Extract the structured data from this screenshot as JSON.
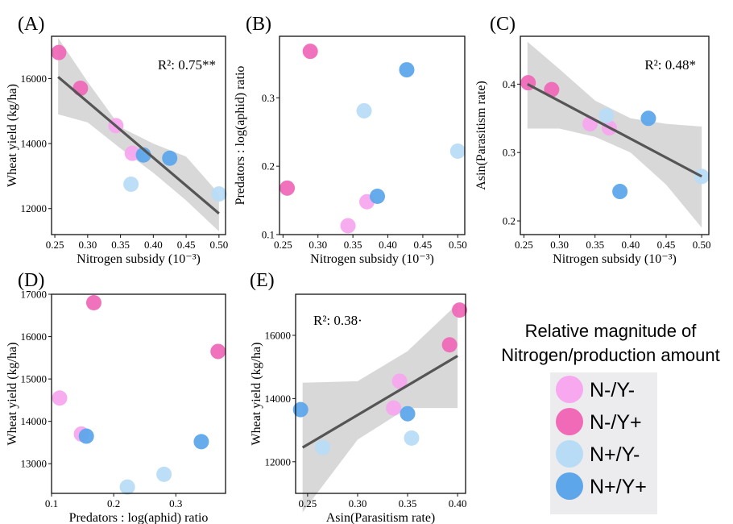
{
  "colors": {
    "N-/Y-": "#f7a8ef",
    "N-/Y+": "#f06ab8",
    "N+/Y-": "#b8dcf5",
    "N+/Y+": "#5ea6ea",
    "fit_line": "#555555",
    "ci_band": "#d8d8d8"
  },
  "chart_data": [
    {
      "panel": "(A)",
      "type": "scatter",
      "xlabel": "Nitrogen subsidy (10⁻³)",
      "ylabel": "Wheat yield (kg/ha)",
      "annotation": "R²: 0.75**",
      "xlim": [
        0.245,
        0.51
      ],
      "ylim": [
        11200,
        17300
      ],
      "xticks": [
        0.25,
        0.3,
        0.35,
        0.4,
        0.45,
        0.5
      ],
      "xtick_labels": [
        "0.25",
        "0.30",
        "0.35",
        "0.40",
        "0.45",
        "0.50"
      ],
      "yticks": [
        12000,
        14000,
        16000
      ],
      "ytick_labels": [
        "12000",
        "14000",
        "16000"
      ],
      "fit": {
        "x": [
          0.255,
          0.5
        ],
        "y": [
          16050,
          11850
        ]
      },
      "ci": {
        "x": [
          0.255,
          0.3,
          0.35,
          0.4,
          0.45,
          0.5
        ],
        "lower": [
          14900,
          14650,
          13850,
          13100,
          12250,
          11300
        ],
        "upper": [
          17250,
          15900,
          14500,
          14000,
          13600,
          12450
        ]
      },
      "points": [
        {
          "x": 0.256,
          "y": 16800,
          "group": "N-/Y+"
        },
        {
          "x": 0.289,
          "y": 15700,
          "group": "N-/Y+"
        },
        {
          "x": 0.343,
          "y": 14550,
          "group": "N-/Y-"
        },
        {
          "x": 0.368,
          "y": 13700,
          "group": "N-/Y-"
        },
        {
          "x": 0.366,
          "y": 12750,
          "group": "N+/Y-"
        },
        {
          "x": 0.385,
          "y": 13650,
          "group": "N+/Y+"
        },
        {
          "x": 0.425,
          "y": 13550,
          "group": "N+/Y+"
        },
        {
          "x": 0.5,
          "y": 12450,
          "group": "N+/Y-"
        }
      ]
    },
    {
      "panel": "(B)",
      "type": "scatter",
      "xlabel": "Nitrogen subsidy (10⁻³)",
      "ylabel": "Predators : log(aphid) ratio",
      "annotation": "",
      "xlim": [
        0.245,
        0.51
      ],
      "ylim": [
        0.1,
        0.39
      ],
      "xticks": [
        0.25,
        0.3,
        0.35,
        0.4,
        0.45,
        0.5
      ],
      "xtick_labels": [
        "0.25",
        "0.30",
        "0.35",
        "0.40",
        "0.45",
        "0.50"
      ],
      "yticks": [
        0.1,
        0.2,
        0.3
      ],
      "ytick_labels": [
        "0.1",
        "0.2",
        "0.3"
      ],
      "points": [
        {
          "x": 0.256,
          "y": 0.168,
          "group": "N-/Y+"
        },
        {
          "x": 0.289,
          "y": 0.368,
          "group": "N-/Y+"
        },
        {
          "x": 0.343,
          "y": 0.113,
          "group": "N-/Y-"
        },
        {
          "x": 0.37,
          "y": 0.148,
          "group": "N-/Y-"
        },
        {
          "x": 0.366,
          "y": 0.281,
          "group": "N+/Y-"
        },
        {
          "x": 0.385,
          "y": 0.156,
          "group": "N+/Y+"
        },
        {
          "x": 0.427,
          "y": 0.341,
          "group": "N+/Y+"
        },
        {
          "x": 0.5,
          "y": 0.222,
          "group": "N+/Y-"
        }
      ]
    },
    {
      "panel": "(C)",
      "type": "scatter",
      "xlabel": "Nitrogen subsidy (10⁻³)",
      "ylabel": "Asin(Parasitism rate)",
      "annotation": "R²: 0.48*",
      "xlim": [
        0.245,
        0.51
      ],
      "ylim": [
        0.18,
        0.47
      ],
      "xticks": [
        0.25,
        0.3,
        0.35,
        0.4,
        0.45,
        0.5
      ],
      "xtick_labels": [
        "0.25",
        "0.30",
        "0.35",
        "0.40",
        "0.45",
        "0.50"
      ],
      "yticks": [
        0.2,
        0.3,
        0.4
      ],
      "ytick_labels": [
        "0.2",
        "0.3",
        "0.4"
      ],
      "fit": {
        "x": [
          0.255,
          0.5
        ],
        "y": [
          0.4,
          0.265
        ]
      },
      "ci": {
        "x": [
          0.255,
          0.3,
          0.35,
          0.4,
          0.45,
          0.5
        ],
        "lower": [
          0.335,
          0.335,
          0.323,
          0.3,
          0.253,
          0.19
        ],
        "upper": [
          0.462,
          0.422,
          0.376,
          0.35,
          0.342,
          0.338
        ]
      },
      "points": [
        {
          "x": 0.256,
          "y": 0.402,
          "group": "N-/Y+"
        },
        {
          "x": 0.289,
          "y": 0.392,
          "group": "N-/Y+"
        },
        {
          "x": 0.343,
          "y": 0.342,
          "group": "N-/Y-"
        },
        {
          "x": 0.37,
          "y": 0.336,
          "group": "N-/Y-"
        },
        {
          "x": 0.366,
          "y": 0.354,
          "group": "N+/Y-"
        },
        {
          "x": 0.385,
          "y": 0.243,
          "group": "N+/Y+"
        },
        {
          "x": 0.425,
          "y": 0.35,
          "group": "N+/Y+"
        },
        {
          "x": 0.5,
          "y": 0.265,
          "group": "N+/Y-"
        }
      ]
    },
    {
      "panel": "(D)",
      "type": "scatter",
      "xlabel": "Predators : log(aphid) ratio",
      "ylabel": "Wheat yield (kg/ha)",
      "annotation": "",
      "xlim": [
        0.1,
        0.38
      ],
      "ylim": [
        12300,
        17000
      ],
      "xticks": [
        0.1,
        0.2,
        0.3
      ],
      "xtick_labels": [
        "0.1",
        "0.2",
        "0.3"
      ],
      "yticks": [
        13000,
        14000,
        15000,
        16000,
        17000
      ],
      "ytick_labels": [
        "13000",
        "14000",
        "15000",
        "16000",
        "17000"
      ],
      "points": [
        {
          "x": 0.113,
          "y": 14550,
          "group": "N-/Y-"
        },
        {
          "x": 0.148,
          "y": 13700,
          "group": "N-/Y-"
        },
        {
          "x": 0.168,
          "y": 16800,
          "group": "N-/Y+"
        },
        {
          "x": 0.368,
          "y": 15650,
          "group": "N-/Y+"
        },
        {
          "x": 0.156,
          "y": 13650,
          "group": "N+/Y+"
        },
        {
          "x": 0.341,
          "y": 13520,
          "group": "N+/Y+"
        },
        {
          "x": 0.222,
          "y": 12450,
          "group": "N+/Y-"
        },
        {
          "x": 0.281,
          "y": 12750,
          "group": "N+/Y-"
        }
      ]
    },
    {
      "panel": "(E)",
      "type": "scatter",
      "xlabel": "Asin(Parasitism rate)",
      "ylabel": "Wheat yield (kg/ha)",
      "annotation": "R²: 0.38·",
      "xlim": [
        0.238,
        0.408
      ],
      "ylim": [
        11000,
        17300
      ],
      "xticks": [
        0.25,
        0.3,
        0.35,
        0.4
      ],
      "xtick_labels": [
        "0.25",
        "0.30",
        "0.35",
        "0.40"
      ],
      "yticks": [
        12000,
        14000,
        16000
      ],
      "ytick_labels": [
        "12000",
        "14000",
        "16000"
      ],
      "fit": {
        "x": [
          0.245,
          0.4
        ],
        "y": [
          12450,
          15350
        ]
      },
      "ci": {
        "x": [
          0.245,
          0.3,
          0.35,
          0.4
        ],
        "lower": [
          10400,
          12700,
          13700,
          13700
        ],
        "upper": [
          14500,
          14550,
          15500,
          17000
        ]
      },
      "points": [
        {
          "x": 0.243,
          "y": 13650,
          "group": "N+/Y+"
        },
        {
          "x": 0.265,
          "y": 12450,
          "group": "N+/Y-"
        },
        {
          "x": 0.336,
          "y": 13700,
          "group": "N-/Y-"
        },
        {
          "x": 0.342,
          "y": 14550,
          "group": "N-/Y-"
        },
        {
          "x": 0.35,
          "y": 13520,
          "group": "N+/Y+"
        },
        {
          "x": 0.354,
          "y": 12750,
          "group": "N+/Y-"
        },
        {
          "x": 0.392,
          "y": 15700,
          "group": "N-/Y+"
        },
        {
          "x": 0.402,
          "y": 16800,
          "group": "N-/Y+"
        }
      ]
    }
  ],
  "legend": {
    "title_line1": "Relative magnitude of",
    "title_line2": "Nitrogen/production amount",
    "items": [
      {
        "label": "N-/Y-",
        "group": "N-/Y-"
      },
      {
        "label": "N-/Y+",
        "group": "N-/Y+"
      },
      {
        "label": "N+/Y-",
        "group": "N+/Y-"
      },
      {
        "label": "N+/Y+",
        "group": "N+/Y+"
      }
    ]
  }
}
